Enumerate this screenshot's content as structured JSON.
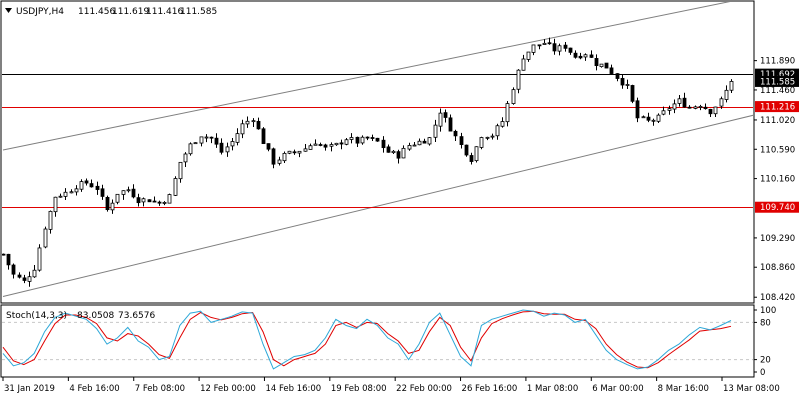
{
  "header": {
    "symbol": "USDJPY,H4",
    "open": "111.456",
    "high": "111.619",
    "low": "111.416",
    "close": "111.585"
  },
  "stoch": {
    "label": "Stoch(14,3,3)",
    "main": "83.0508",
    "signal": "73.6576"
  },
  "colors": {
    "background": "#ffffff",
    "candle": "#000000",
    "resistance": "#e00000",
    "channel": "#7f7f7f",
    "stoch_main": "#2ea8d8",
    "stoch_signal": "#e00000",
    "level_dash": "#c8c8c8"
  },
  "chart_data": {
    "type": "candlestick",
    "price_axis": {
      "range": [
        108.35,
        112.75
      ],
      "ticks": [
        "111.890",
        "111.460",
        "111.020",
        "110.590",
        "110.160",
        "109.290",
        "108.860",
        "108.420"
      ]
    },
    "time_axis": {
      "labels": [
        "31 Jan 2019",
        "4 Feb 16:00",
        "7 Feb 08:00",
        "12 Feb 00:00",
        "14 Feb 16:00",
        "19 Feb 08:00",
        "22 Feb 00:00",
        "26 Feb 16:00",
        "1 Mar 08:00",
        "6 Mar 00:00",
        "8 Mar 16:00",
        "13 Mar 08:00"
      ]
    },
    "horizontal_levels": [
      {
        "price": 111.216,
        "label": "111.216",
        "style": "red"
      },
      {
        "price": 109.74,
        "label": "109.740",
        "style": "red"
      },
      {
        "price": 111.692,
        "label": "111.692",
        "style": "black"
      }
    ],
    "current_price": {
      "price": 111.585,
      "label": "111.585"
    },
    "channel_lines": [
      {
        "from": [
          0,
          110.58
        ],
        "to": [
          140,
          112.76
        ]
      },
      {
        "from": [
          0,
          108.43
        ],
        "to": [
          140,
          111.01
        ]
      }
    ],
    "close_path": [
      [
        0,
        109.05
      ],
      [
        2,
        108.75
      ],
      [
        4,
        108.65
      ],
      [
        6,
        108.85
      ],
      [
        8,
        109.45
      ],
      [
        10,
        109.9
      ],
      [
        12,
        109.95
      ],
      [
        14,
        110.05
      ],
      [
        16,
        110.1
      ],
      [
        18,
        110.02
      ],
      [
        20,
        109.7
      ],
      [
        22,
        109.95
      ],
      [
        24,
        110.0
      ],
      [
        26,
        109.85
      ],
      [
        28,
        109.85
      ],
      [
        30,
        109.8
      ],
      [
        32,
        109.9
      ],
      [
        34,
        110.4
      ],
      [
        36,
        110.65
      ],
      [
        38,
        110.8
      ],
      [
        40,
        110.75
      ],
      [
        42,
        110.55
      ],
      [
        44,
        110.7
      ],
      [
        46,
        110.95
      ],
      [
        48,
        111.05
      ],
      [
        50,
        110.7
      ],
      [
        52,
        110.4
      ],
      [
        54,
        110.5
      ],
      [
        56,
        110.55
      ],
      [
        58,
        110.6
      ],
      [
        60,
        110.7
      ],
      [
        62,
        110.6
      ],
      [
        64,
        110.65
      ],
      [
        66,
        110.75
      ],
      [
        68,
        110.7
      ],
      [
        70,
        110.75
      ],
      [
        72,
        110.7
      ],
      [
        74,
        110.55
      ],
      [
        76,
        110.5
      ],
      [
        78,
        110.65
      ],
      [
        80,
        110.7
      ],
      [
        82,
        110.75
      ],
      [
        84,
        111.15
      ],
      [
        86,
        110.9
      ],
      [
        88,
        110.65
      ],
      [
        90,
        110.45
      ],
      [
        92,
        110.8
      ],
      [
        94,
        110.8
      ],
      [
        96,
        111.0
      ],
      [
        98,
        111.5
      ],
      [
        100,
        111.95
      ],
      [
        102,
        112.1
      ],
      [
        104,
        112.15
      ],
      [
        106,
        112.05
      ],
      [
        108,
        112.1
      ],
      [
        110,
        111.95
      ],
      [
        112,
        112.0
      ],
      [
        114,
        111.85
      ],
      [
        116,
        111.8
      ],
      [
        118,
        111.65
      ],
      [
        120,
        111.5
      ],
      [
        122,
        111.05
      ],
      [
        124,
        111.0
      ],
      [
        126,
        111.05
      ],
      [
        128,
        111.2
      ],
      [
        130,
        111.3
      ],
      [
        132,
        111.2
      ],
      [
        134,
        111.25
      ],
      [
        136,
        111.15
      ],
      [
        138,
        111.3
      ],
      [
        140,
        111.585
      ]
    ],
    "stoch_axis": {
      "range": [
        0,
        100
      ],
      "ticks": [
        "100",
        "80",
        "20",
        "0"
      ],
      "levels": [
        80,
        20
      ]
    },
    "stoch_main": [
      [
        0,
        30
      ],
      [
        2,
        10
      ],
      [
        4,
        15
      ],
      [
        6,
        30
      ],
      [
        8,
        65
      ],
      [
        10,
        88
      ],
      [
        12,
        95
      ],
      [
        14,
        90
      ],
      [
        16,
        85
      ],
      [
        18,
        70
      ],
      [
        20,
        45
      ],
      [
        22,
        55
      ],
      [
        24,
        72
      ],
      [
        26,
        50
      ],
      [
        28,
        40
      ],
      [
        30,
        20
      ],
      [
        32,
        25
      ],
      [
        34,
        75
      ],
      [
        36,
        95
      ],
      [
        38,
        98
      ],
      [
        40,
        80
      ],
      [
        42,
        85
      ],
      [
        44,
        90
      ],
      [
        46,
        97
      ],
      [
        48,
        95
      ],
      [
        50,
        45
      ],
      [
        52,
        5
      ],
      [
        54,
        15
      ],
      [
        56,
        25
      ],
      [
        58,
        28
      ],
      [
        60,
        35
      ],
      [
        62,
        55
      ],
      [
        64,
        85
      ],
      [
        66,
        75
      ],
      [
        68,
        70
      ],
      [
        70,
        85
      ],
      [
        72,
        75
      ],
      [
        74,
        55
      ],
      [
        76,
        45
      ],
      [
        78,
        20
      ],
      [
        80,
        45
      ],
      [
        82,
        80
      ],
      [
        84,
        95
      ],
      [
        86,
        60
      ],
      [
        88,
        25
      ],
      [
        90,
        10
      ],
      [
        92,
        75
      ],
      [
        94,
        85
      ],
      [
        96,
        90
      ],
      [
        98,
        95
      ],
      [
        100,
        100
      ],
      [
        102,
        98
      ],
      [
        104,
        90
      ],
      [
        106,
        95
      ],
      [
        108,
        92
      ],
      [
        110,
        80
      ],
      [
        112,
        85
      ],
      [
        114,
        60
      ],
      [
        116,
        35
      ],
      [
        118,
        20
      ],
      [
        120,
        12
      ],
      [
        122,
        5
      ],
      [
        124,
        8
      ],
      [
        126,
        20
      ],
      [
        128,
        35
      ],
      [
        130,
        45
      ],
      [
        132,
        60
      ],
      [
        134,
        72
      ],
      [
        136,
        68
      ],
      [
        138,
        75
      ],
      [
        140,
        83.0508
      ]
    ],
    "stoch_signal": [
      [
        0,
        40
      ],
      [
        2,
        18
      ],
      [
        4,
        12
      ],
      [
        6,
        20
      ],
      [
        8,
        50
      ],
      [
        10,
        78
      ],
      [
        12,
        92
      ],
      [
        14,
        92
      ],
      [
        16,
        88
      ],
      [
        18,
        78
      ],
      [
        20,
        55
      ],
      [
        22,
        50
      ],
      [
        24,
        62
      ],
      [
        26,
        58
      ],
      [
        28,
        45
      ],
      [
        30,
        28
      ],
      [
        32,
        22
      ],
      [
        34,
        55
      ],
      [
        36,
        85
      ],
      [
        38,
        96
      ],
      [
        40,
        88
      ],
      [
        42,
        84
      ],
      [
        44,
        88
      ],
      [
        46,
        94
      ],
      [
        48,
        96
      ],
      [
        50,
        65
      ],
      [
        52,
        20
      ],
      [
        54,
        10
      ],
      [
        56,
        20
      ],
      [
        58,
        25
      ],
      [
        60,
        30
      ],
      [
        62,
        45
      ],
      [
        64,
        75
      ],
      [
        66,
        80
      ],
      [
        68,
        72
      ],
      [
        70,
        80
      ],
      [
        72,
        78
      ],
      [
        74,
        62
      ],
      [
        76,
        50
      ],
      [
        78,
        30
      ],
      [
        80,
        35
      ],
      [
        82,
        65
      ],
      [
        84,
        88
      ],
      [
        86,
        75
      ],
      [
        88,
        40
      ],
      [
        90,
        18
      ],
      [
        92,
        55
      ],
      [
        94,
        78
      ],
      [
        96,
        86
      ],
      [
        98,
        92
      ],
      [
        100,
        97
      ],
      [
        102,
        98
      ],
      [
        104,
        94
      ],
      [
        106,
        93
      ],
      [
        108,
        93
      ],
      [
        110,
        85
      ],
      [
        112,
        83
      ],
      [
        114,
        70
      ],
      [
        116,
        45
      ],
      [
        118,
        28
      ],
      [
        120,
        16
      ],
      [
        122,
        8
      ],
      [
        124,
        7
      ],
      [
        126,
        15
      ],
      [
        128,
        28
      ],
      [
        130,
        40
      ],
      [
        132,
        52
      ],
      [
        134,
        66
      ],
      [
        136,
        68
      ],
      [
        138,
        70
      ],
      [
        140,
        73.6576
      ]
    ]
  }
}
